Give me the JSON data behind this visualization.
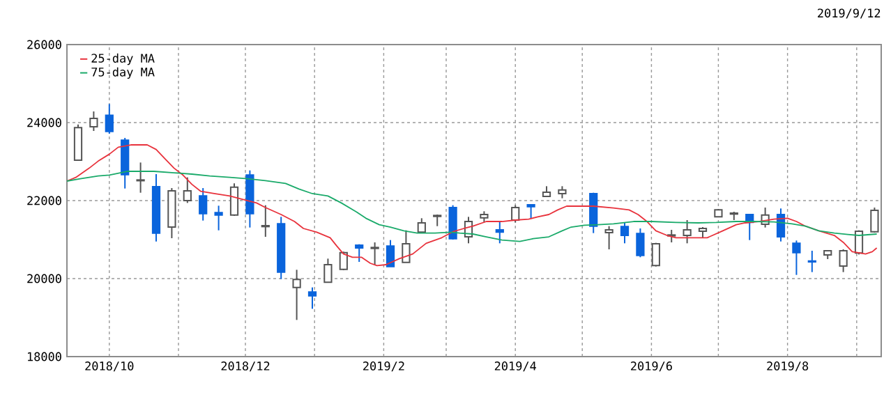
{
  "chart_data": {
    "type": "candlestick",
    "annotations": [
      "2019/9/12"
    ],
    "x": [
      "2018-09-17",
      "2018-09-24",
      "2018-10-01",
      "2018-10-08",
      "2018-10-15",
      "2018-10-22",
      "2018-10-29",
      "2018-11-05",
      "2018-11-12",
      "2018-11-19",
      "2018-11-26",
      "2018-12-03",
      "2018-12-10",
      "2018-12-17",
      "2018-12-24",
      "2018-12-31",
      "2019-01-07",
      "2019-01-14",
      "2019-01-21",
      "2019-01-28",
      "2019-02-04",
      "2019-02-11",
      "2019-02-18",
      "2019-02-25",
      "2019-03-04",
      "2019-03-11",
      "2019-03-18",
      "2019-03-25",
      "2019-04-01",
      "2019-04-08",
      "2019-04-15",
      "2019-04-22",
      "2019-05-06",
      "2019-05-13",
      "2019-05-20",
      "2019-05-27",
      "2019-06-03",
      "2019-06-10",
      "2019-06-17",
      "2019-06-24",
      "2019-07-01",
      "2019-07-08",
      "2019-07-15",
      "2019-07-22",
      "2019-07-29",
      "2019-08-05",
      "2019-08-12",
      "2019-08-19",
      "2019-08-26",
      "2019-09-02",
      "2019-09-09"
    ],
    "ohlc": [
      [
        23036,
        23952,
        23036,
        23869
      ],
      [
        23893,
        24286,
        23786,
        24107
      ],
      [
        24190,
        24476,
        23714,
        23774
      ],
      [
        23548,
        23607,
        22310,
        22667
      ],
      [
        22510,
        22976,
        22202,
        22530
      ],
      [
        22357,
        22679,
        20952,
        21167
      ],
      [
        21321,
        22321,
        21036,
        22250
      ],
      [
        22000,
        22595,
        21940,
        22250
      ],
      [
        22119,
        22321,
        21488,
        21667
      ],
      [
        21690,
        21869,
        21238,
        21631
      ],
      [
        21631,
        22440,
        21607,
        22345
      ],
      [
        22655,
        22774,
        21310,
        21667
      ],
      [
        21333,
        21881,
        21071,
        21357
      ],
      [
        21405,
        21583,
        19988,
        20167
      ],
      [
        19774,
        20226,
        18940,
        19976
      ],
      [
        19655,
        19774,
        19226,
        19560
      ],
      [
        19905,
        20512,
        19905,
        20357
      ],
      [
        20238,
        20690,
        20214,
        20667
      ],
      [
        20857,
        20881,
        20429,
        20786
      ],
      [
        20774,
        20929,
        20357,
        20798
      ],
      [
        20833,
        20988,
        20310,
        20310
      ],
      [
        20417,
        21238,
        20417,
        20893
      ],
      [
        21190,
        21548,
        21167,
        21429
      ],
      [
        21595,
        21643,
        21345,
        21619
      ],
      [
        21821,
        21881,
        21000,
        21024
      ],
      [
        21071,
        21583,
        20905,
        21464
      ],
      [
        21560,
        21726,
        21440,
        21643
      ],
      [
        21250,
        21464,
        20905,
        21190
      ],
      [
        21500,
        21881,
        21440,
        21821
      ],
      [
        21893,
        21893,
        21548,
        21845
      ],
      [
        22107,
        22369,
        22107,
        22214
      ],
      [
        22179,
        22369,
        22060,
        22274
      ],
      [
        22179,
        22202,
        21167,
        21345
      ],
      [
        21179,
        21345,
        20750,
        21250
      ],
      [
        21333,
        21429,
        20905,
        21107
      ],
      [
        21155,
        21286,
        20548,
        20595
      ],
      [
        20333,
        20917,
        20310,
        20893
      ],
      [
        21095,
        21250,
        20929,
        21119
      ],
      [
        21107,
        21500,
        20905,
        21250
      ],
      [
        21214,
        21321,
        21048,
        21286
      ],
      [
        21583,
        21786,
        21583,
        21762
      ],
      [
        21655,
        21714,
        21500,
        21679
      ],
      [
        21643,
        21655,
        20988,
        21440
      ],
      [
        21393,
        21821,
        21310,
        21631
      ],
      [
        21643,
        21798,
        20952,
        21071
      ],
      [
        20905,
        20976,
        20095,
        20667
      ],
      [
        20452,
        20714,
        20167,
        20429
      ],
      [
        20607,
        20726,
        20500,
        20714
      ],
      [
        20321,
        20750,
        20167,
        20714
      ],
      [
        20655,
        21238,
        20619,
        21214
      ],
      [
        21202,
        21821,
        21179,
        21750
      ]
    ],
    "colors": [
      "#555555",
      "#555555",
      "#0a64dc",
      "#0a64dc",
      "#555555",
      "#0a64dc",
      "#555555",
      "#555555",
      "#0a64dc",
      "#0a64dc",
      "#555555",
      "#0a64dc",
      "#555555",
      "#0a64dc",
      "#555555",
      "#0a64dc",
      "#555555",
      "#555555",
      "#0a64dc",
      "#555555",
      "#0a64dc",
      "#555555",
      "#555555",
      "#555555",
      "#0a64dc",
      "#555555",
      "#555555",
      "#0a64dc",
      "#555555",
      "#0a64dc",
      "#555555",
      "#555555",
      "#0a64dc",
      "#555555",
      "#0a64dc",
      "#0a64dc",
      "#555555",
      "#555555",
      "#555555",
      "#555555",
      "#555555",
      "#555555",
      "#0a64dc",
      "#555555",
      "#0a64dc",
      "#0a64dc",
      "#0a64dc",
      "#555555",
      "#555555",
      "#555555",
      "#555555"
    ],
    "series": [
      {
        "name": "25-day MA",
        "type": "line",
        "color": "#e8323c",
        "x": [
          "2018-09-12",
          "2018-09-16",
          "2018-09-22",
          "2018-09-26",
          "2018-10-01",
          "2018-10-05",
          "2018-10-11",
          "2018-10-18",
          "2018-10-22",
          "2018-10-26",
          "2018-10-30",
          "2018-11-03",
          "2018-11-07",
          "2018-11-11",
          "2018-11-17",
          "2018-11-24",
          "2018-12-02",
          "2018-12-06",
          "2018-12-10",
          "2018-12-17",
          "2018-12-23",
          "2018-12-27",
          "2019-01-02",
          "2019-01-08",
          "2019-01-11",
          "2019-01-14",
          "2019-01-18",
          "2019-01-22",
          "2019-01-26",
          "2019-01-29",
          "2019-02-02",
          "2019-02-08",
          "2019-02-14",
          "2019-02-20",
          "2019-02-27",
          "2019-03-04",
          "2019-03-09",
          "2019-03-13",
          "2019-03-19",
          "2019-03-26",
          "2019-04-01",
          "2019-04-07",
          "2019-04-11",
          "2019-04-16",
          "2019-04-20",
          "2019-04-24",
          "2019-04-30",
          "2019-05-06",
          "2019-05-15",
          "2019-05-22",
          "2019-05-26",
          "2019-05-30",
          "2019-06-03",
          "2019-06-08",
          "2019-06-12",
          "2019-06-18",
          "2019-06-26",
          "2019-07-03",
          "2019-07-09",
          "2019-07-13",
          "2019-07-19",
          "2019-07-26",
          "2019-08-01",
          "2019-08-05",
          "2019-08-09",
          "2019-08-15",
          "2019-08-22",
          "2019-08-26",
          "2019-08-30",
          "2019-09-05",
          "2019-09-08",
          "2019-09-10"
        ],
        "values": [
          22500,
          22595,
          22833,
          23012,
          23190,
          23369,
          23429,
          23429,
          23310,
          23071,
          22833,
          22655,
          22417,
          22238,
          22179,
          22119,
          22000,
          21940,
          21821,
          21643,
          21464,
          21286,
          21190,
          21048,
          20833,
          20631,
          20548,
          20548,
          20393,
          20333,
          20357,
          20512,
          20631,
          20905,
          21048,
          21202,
          21286,
          21345,
          21464,
          21464,
          21500,
          21524,
          21583,
          21643,
          21762,
          21857,
          21857,
          21857,
          21810,
          21762,
          21643,
          21464,
          21226,
          21107,
          21048,
          21048,
          21048,
          21226,
          21381,
          21429,
          21464,
          21524,
          21548,
          21464,
          21345,
          21226,
          21107,
          20929,
          20690,
          20631,
          20690,
          20786
        ]
      },
      {
        "name": "75-day MA",
        "type": "line",
        "color": "#1aaa6a",
        "x": [
          "2018-09-12",
          "2018-09-18",
          "2018-09-26",
          "2018-10-01",
          "2018-10-09",
          "2018-10-21",
          "2018-10-30",
          "2018-11-07",
          "2018-11-15",
          "2018-11-24",
          "2018-12-02",
          "2018-12-10",
          "2018-12-19",
          "2018-12-25",
          "2018-12-31",
          "2019-01-07",
          "2019-01-13",
          "2019-01-20",
          "2019-01-24",
          "2019-01-30",
          "2019-02-04",
          "2019-02-10",
          "2019-02-16",
          "2019-02-24",
          "2019-03-03",
          "2019-03-07",
          "2019-03-13",
          "2019-03-19",
          "2019-03-26",
          "2019-04-03",
          "2019-04-09",
          "2019-04-16",
          "2019-04-22",
          "2019-04-26",
          "2019-05-02",
          "2019-05-08",
          "2019-05-15",
          "2019-05-24",
          "2019-06-01",
          "2019-06-12",
          "2019-06-22",
          "2019-06-30",
          "2019-07-09",
          "2019-07-17",
          "2019-07-26",
          "2019-08-03",
          "2019-08-09",
          "2019-08-15",
          "2019-08-22",
          "2019-08-28",
          "2019-09-02",
          "2019-09-10"
        ],
        "values": [
          22500,
          22560,
          22631,
          22655,
          22750,
          22750,
          22714,
          22679,
          22631,
          22595,
          22560,
          22512,
          22440,
          22298,
          22179,
          22119,
          21940,
          21702,
          21548,
          21381,
          21321,
          21226,
          21167,
          21167,
          21190,
          21167,
          21143,
          21071,
          20988,
          20952,
          21024,
          21071,
          21226,
          21321,
          21369,
          21381,
          21405,
          21464,
          21464,
          21440,
          21429,
          21440,
          21464,
          21464,
          21452,
          21405,
          21345,
          21226,
          21167,
          21131,
          21107,
          21143
        ]
      }
    ],
    "xlim": [
      "2018-09-12",
      "2019-09-12"
    ],
    "xticks": [
      {
        "value": "2018-10-01",
        "label": "2018/10"
      },
      {
        "value": "2018-11-01",
        "label": null
      },
      {
        "value": "2018-12-01",
        "label": "2018/12"
      },
      {
        "value": "2019-01-01",
        "label": null
      },
      {
        "value": "2019-02-01",
        "label": "2019/2"
      },
      {
        "value": "2019-03-01",
        "label": null
      },
      {
        "value": "2019-04-01",
        "label": "2019/4"
      },
      {
        "value": "2019-05-01",
        "label": null
      },
      {
        "value": "2019-06-01",
        "label": "2019/6"
      },
      {
        "value": "2019-07-01",
        "label": null
      },
      {
        "value": "2019-08-01",
        "label": "2019/8"
      },
      {
        "value": "2019-09-01",
        "label": null
      }
    ],
    "ylim": [
      18000,
      26000
    ],
    "yticks": [
      18000,
      20000,
      22000,
      24000,
      26000
    ],
    "grid": true,
    "legend": "top left"
  }
}
